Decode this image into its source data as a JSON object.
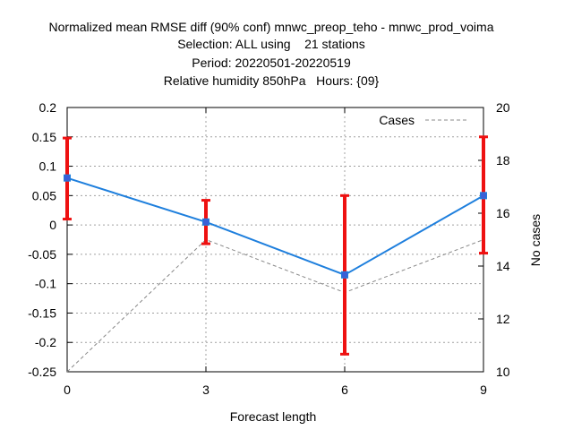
{
  "chart_data": {
    "type": "line",
    "title_lines": [
      "Normalized mean RMSE diff (90% conf) mnwc_preop_teho - mnwc_prod_voima",
      "Selection: ALL using    21 stations",
      "Period: 20220501-20220519",
      "Relative humidity 850hPa   Hours: {09}"
    ],
    "xlabel": "Forecast length",
    "ylabel_right": "No cases",
    "x": [
      0,
      3,
      6,
      9
    ],
    "xlim": [
      0,
      9
    ],
    "ylim": [
      -0.25,
      0.2
    ],
    "y2lim": [
      10,
      20
    ],
    "x_ticks": [
      "0",
      "3",
      "6",
      "9"
    ],
    "y_ticks": [
      "0.2",
      "0.15",
      "0.1",
      "0.05",
      "0",
      "-0.05",
      "-0.1",
      "-0.15",
      "-0.2",
      "-0.25"
    ],
    "y2_ticks": [
      "20",
      "18",
      "16",
      "14",
      "12",
      "10"
    ],
    "grid": true,
    "legend_position": "top-right",
    "series": [
      {
        "values": [
          0.08,
          0.005,
          -0.085,
          0.05
        ],
        "lower": [
          0.01,
          -0.032,
          -0.22,
          -0.048
        ],
        "upper": [
          0.148,
          0.042,
          0.05,
          0.15
        ],
        "color": "#1e7fdd",
        "errorbar_color": "#ee1111",
        "axis": "left"
      },
      {
        "name": "Cases",
        "values": [
          10,
          15,
          13,
          15
        ],
        "color": "#888888",
        "style": "dashed",
        "axis": "right"
      }
    ]
  }
}
